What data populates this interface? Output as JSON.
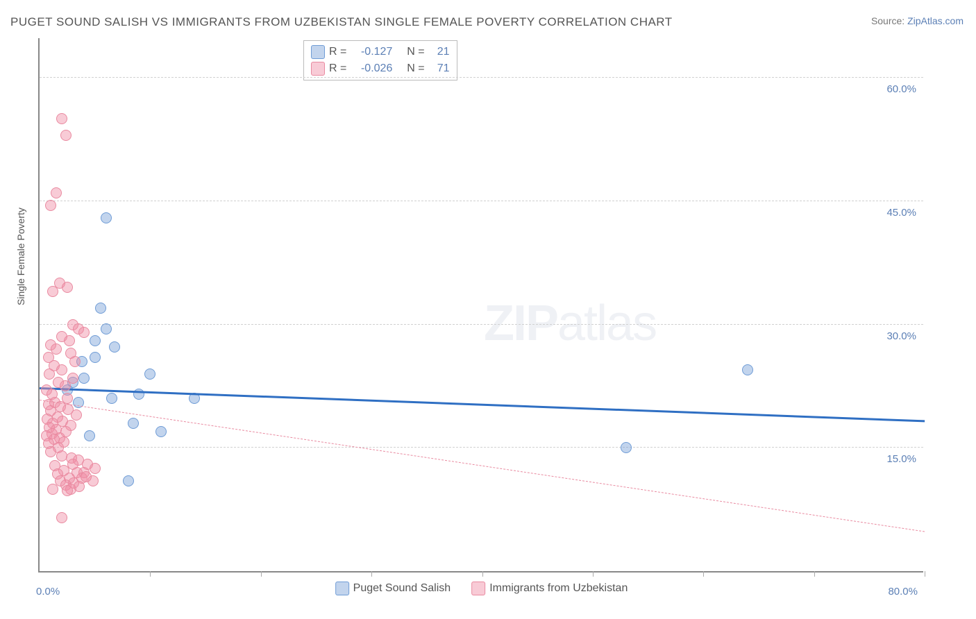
{
  "title": "PUGET SOUND SALISH VS IMMIGRANTS FROM UZBEKISTAN SINGLE FEMALE POVERTY CORRELATION CHART",
  "source_prefix": "Source: ",
  "source_link": "ZipAtlas.com",
  "y_axis_label": "Single Female Poverty",
  "watermark_a": "ZIP",
  "watermark_b": "atlas",
  "chart": {
    "type": "scatter",
    "background_color": "#ffffff",
    "grid_color": "#d0d0d0",
    "axis_color": "#888888",
    "xlim": [
      0,
      80
    ],
    "ylim": [
      0,
      65
    ],
    "x_ticks": [
      0,
      10,
      20,
      30,
      40,
      50,
      60,
      70,
      80
    ],
    "x_tick_labels": {
      "0": "0.0%",
      "80": "80.0%"
    },
    "y_grid": [
      15,
      30,
      45,
      60
    ],
    "y_tick_labels": {
      "15": "15.0%",
      "30": "30.0%",
      "45": "45.0%",
      "60": "60.0%"
    },
    "point_radius": 8,
    "series": [
      {
        "name": "Puget Sound Salish",
        "fill": "rgba(120,160,215,0.45)",
        "stroke": "#6f9cd6",
        "trend_color": "#2f6fc3",
        "trend_width": 3,
        "trend_dash": "solid",
        "R": "-0.127",
        "N": "21",
        "trend": {
          "y_at_x0": 22.5,
          "y_at_xmax": 18.5
        },
        "points": [
          [
            6.0,
            43.0
          ],
          [
            5.5,
            32.0
          ],
          [
            6.0,
            29.5
          ],
          [
            5.0,
            28.0
          ],
          [
            6.8,
            27.3
          ],
          [
            4.0,
            23.5
          ],
          [
            3.0,
            23.0
          ],
          [
            10.0,
            24.0
          ],
          [
            9.0,
            21.5
          ],
          [
            6.5,
            21.0
          ],
          [
            3.5,
            20.5
          ],
          [
            14.0,
            21.0
          ],
          [
            8.5,
            18.0
          ],
          [
            11.0,
            17.0
          ],
          [
            8.0,
            11.0
          ],
          [
            53.0,
            15.0
          ],
          [
            64.0,
            24.5
          ],
          [
            4.5,
            16.5
          ],
          [
            3.8,
            25.5
          ],
          [
            5.0,
            26.0
          ],
          [
            2.5,
            22.0
          ]
        ]
      },
      {
        "name": "Immigrants from Uzbekistan",
        "fill": "rgba(240,140,165,0.45)",
        "stroke": "#e98aa0",
        "trend_color": "#e98aa0",
        "trend_width": 1.5,
        "trend_dash": "dashed",
        "R": "-0.026",
        "N": "71",
        "trend": {
          "y_at_x0": 21.0,
          "y_at_xmax": 5.0
        },
        "points": [
          [
            2.0,
            55.0
          ],
          [
            2.4,
            53.0
          ],
          [
            1.5,
            46.0
          ],
          [
            1.0,
            44.5
          ],
          [
            1.8,
            35.0
          ],
          [
            2.5,
            34.5
          ],
          [
            1.2,
            34.0
          ],
          [
            3.0,
            30.0
          ],
          [
            3.5,
            29.5
          ],
          [
            4.0,
            29.0
          ],
          [
            2.0,
            28.5
          ],
          [
            2.7,
            28.0
          ],
          [
            1.0,
            27.5
          ],
          [
            1.5,
            27.0
          ],
          [
            2.8,
            26.5
          ],
          [
            0.8,
            26.0
          ],
          [
            3.2,
            25.5
          ],
          [
            1.3,
            25.0
          ],
          [
            2.0,
            24.5
          ],
          [
            0.9,
            24.0
          ],
          [
            3.0,
            23.5
          ],
          [
            1.7,
            23.0
          ],
          [
            2.3,
            22.5
          ],
          [
            0.6,
            22.0
          ],
          [
            1.1,
            21.5
          ],
          [
            2.5,
            21.0
          ],
          [
            1.4,
            20.5
          ],
          [
            0.8,
            20.3
          ],
          [
            1.9,
            20.0
          ],
          [
            2.6,
            19.7
          ],
          [
            1.0,
            19.5
          ],
          [
            3.3,
            19.0
          ],
          [
            1.6,
            18.7
          ],
          [
            0.7,
            18.5
          ],
          [
            2.1,
            18.2
          ],
          [
            1.2,
            18.0
          ],
          [
            2.8,
            17.7
          ],
          [
            0.9,
            17.5
          ],
          [
            1.5,
            17.2
          ],
          [
            2.4,
            17.0
          ],
          [
            1.1,
            16.7
          ],
          [
            0.6,
            16.5
          ],
          [
            1.8,
            16.2
          ],
          [
            1.3,
            16.0
          ],
          [
            2.2,
            15.7
          ],
          [
            0.8,
            15.5
          ],
          [
            1.7,
            15.0
          ],
          [
            1.0,
            14.5
          ],
          [
            2.0,
            14.0
          ],
          [
            2.9,
            13.8
          ],
          [
            3.5,
            13.5
          ],
          [
            4.3,
            13.0
          ],
          [
            3.0,
            13.0
          ],
          [
            1.4,
            12.8
          ],
          [
            5.0,
            12.5
          ],
          [
            2.2,
            12.2
          ],
          [
            4.0,
            12.0
          ],
          [
            3.4,
            12.0
          ],
          [
            1.6,
            11.8
          ],
          [
            2.7,
            11.3
          ],
          [
            3.8,
            11.3
          ],
          [
            4.8,
            11.0
          ],
          [
            1.9,
            11.0
          ],
          [
            3.1,
            10.7
          ],
          [
            2.4,
            10.5
          ],
          [
            4.2,
            11.5
          ],
          [
            1.2,
            10.0
          ],
          [
            2.8,
            10.0
          ],
          [
            3.6,
            10.3
          ],
          [
            2.0,
            6.5
          ],
          [
            2.5,
            9.8
          ]
        ]
      }
    ]
  },
  "legend_top_labels": {
    "R": "R =",
    "N": "N ="
  },
  "legend_bottom": [
    "Puget Sound Salish",
    "Immigrants from Uzbekistan"
  ]
}
